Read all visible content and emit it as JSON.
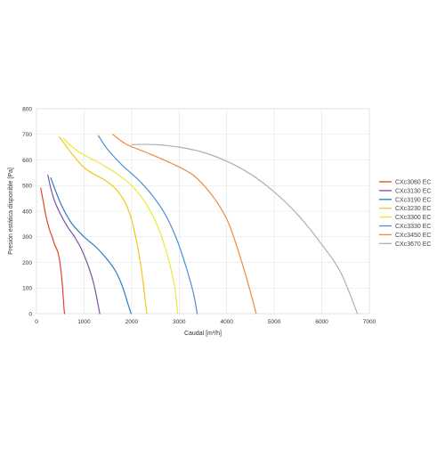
{
  "chart_data": {
    "type": "line",
    "title": "",
    "xlabel": "Caudal [m³/h]",
    "ylabel": "Presión estática disponible [Pa]",
    "xlim": [
      0,
      7000
    ],
    "ylim": [
      0,
      800
    ],
    "xticks": [
      0,
      1000,
      2000,
      3000,
      4000,
      5000,
      6000,
      7000
    ],
    "yticks": [
      0,
      100,
      200,
      300,
      400,
      500,
      600,
      700,
      800
    ],
    "grid": true,
    "legend_position": "right",
    "series": [
      {
        "name": "CXc3060 EC",
        "color": "#e8412a",
        "x": [
          90,
          140,
          200,
          270,
          330,
          380,
          450,
          500,
          545,
          575,
          590
        ],
        "y": [
          490,
          440,
          380,
          330,
          300,
          270,
          240,
          190,
          110,
          30,
          0
        ]
      },
      {
        "name": "CXc3130 EC",
        "color": "#7b52a8",
        "x": [
          240,
          300,
          380,
          500,
          650,
          800,
          950,
          1100,
          1200,
          1280,
          1330
        ],
        "y": [
          540,
          490,
          440,
          390,
          340,
          300,
          250,
          180,
          120,
          50,
          0
        ]
      },
      {
        "name": "CXc3190 EC",
        "color": "#2e78c4",
        "x": [
          300,
          420,
          560,
          750,
          1000,
          1250,
          1450,
          1650,
          1800,
          1920,
          1990
        ],
        "y": [
          530,
          470,
          410,
          350,
          300,
          260,
          220,
          170,
          110,
          40,
          0
        ]
      },
      {
        "name": "CXc3230 EC",
        "color": "#f5c518",
        "x": [
          480,
          580,
          700,
          850,
          1000,
          1200,
          1450,
          1700,
          1900,
          2050,
          2200,
          2320
        ],
        "y": [
          690,
          665,
          635,
          600,
          570,
          545,
          520,
          480,
          420,
          330,
          180,
          0
        ]
      },
      {
        "name": "CXc3300 EC",
        "color": "#eaea3a",
        "x": [
          560,
          700,
          900,
          1150,
          1400,
          1700,
          2000,
          2300,
          2550,
          2750,
          2900,
          2970
        ],
        "y": [
          685,
          660,
          630,
          605,
          580,
          545,
          500,
          430,
          340,
          230,
          110,
          0
        ]
      },
      {
        "name": "CXc3330 EC",
        "color": "#4a8fd6",
        "x": [
          1300,
          1500,
          1800,
          2100,
          2400,
          2700,
          2950,
          3150,
          3300,
          3380
        ],
        "y": [
          695,
          640,
          580,
          530,
          470,
          390,
          290,
          180,
          80,
          0
        ]
      },
      {
        "name": "CXc3450 EC",
        "color": "#f08a3e",
        "x": [
          1600,
          1900,
          2300,
          2800,
          3300,
          3700,
          4000,
          4200,
          4400,
          4550,
          4620
        ],
        "y": [
          700,
          660,
          630,
          590,
          540,
          460,
          370,
          270,
          150,
          50,
          0
        ]
      },
      {
        "name": "CXc3670 EC",
        "color": "#aeb0b2",
        "x": [
          2000,
          2500,
          3000,
          3500,
          4000,
          4500,
          5000,
          5500,
          6000,
          6400,
          6750
        ],
        "y": [
          660,
          660,
          650,
          630,
          595,
          545,
          475,
          385,
          270,
          160,
          0
        ]
      }
    ]
  }
}
